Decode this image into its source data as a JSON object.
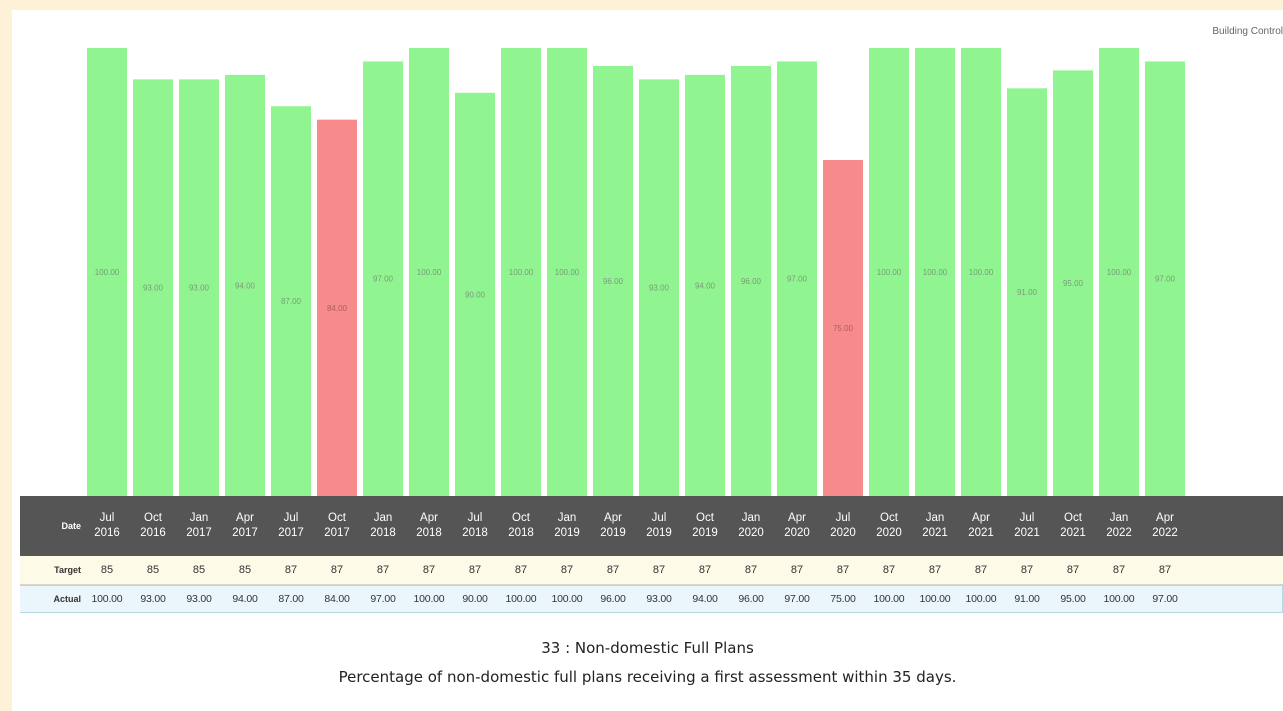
{
  "corner_label": "Building Control",
  "table": {
    "date_header": "Date",
    "target_header": "Target",
    "actual_header": "Actual"
  },
  "caption": {
    "title": "33 : Non-domestic Full Plans",
    "subtitle": "Percentage of non-domestic full plans receiving a first assessment within 35 days."
  },
  "colors": {
    "met_target": "#90f590",
    "below_target": "#f78a8a",
    "bar_label": "#7a9a7a"
  },
  "chart_data": {
    "type": "bar",
    "title": "33 : Non-domestic Full Plans",
    "subtitle": "Percentage of non-domestic full plans receiving a first assessment within 35 days.",
    "ylim": [
      0,
      100
    ],
    "categories": [
      [
        "Jul",
        "2016"
      ],
      [
        "Oct",
        "2016"
      ],
      [
        "Jan",
        "2017"
      ],
      [
        "Apr",
        "2017"
      ],
      [
        "Jul",
        "2017"
      ],
      [
        "Oct",
        "2017"
      ],
      [
        "Jan",
        "2018"
      ],
      [
        "Apr",
        "2018"
      ],
      [
        "Jul",
        "2018"
      ],
      [
        "Oct",
        "2018"
      ],
      [
        "Jan",
        "2019"
      ],
      [
        "Apr",
        "2019"
      ],
      [
        "Jul",
        "2019"
      ],
      [
        "Oct",
        "2019"
      ],
      [
        "Jan",
        "2020"
      ],
      [
        "Apr",
        "2020"
      ],
      [
        "Jul",
        "2020"
      ],
      [
        "Oct",
        "2020"
      ],
      [
        "Jan",
        "2021"
      ],
      [
        "Apr",
        "2021"
      ],
      [
        "Jul",
        "2021"
      ],
      [
        "Oct",
        "2021"
      ],
      [
        "Jan",
        "2022"
      ],
      [
        "Apr",
        "2022"
      ]
    ],
    "target": [
      "85",
      "85",
      "85",
      "85",
      "87",
      "87",
      "87",
      "87",
      "87",
      "87",
      "87",
      "87",
      "87",
      "87",
      "87",
      "87",
      "87",
      "87",
      "87",
      "87",
      "87",
      "87",
      "87",
      "87"
    ],
    "actual": [
      "100.00",
      "93.00",
      "93.00",
      "94.00",
      "87.00",
      "84.00",
      "97.00",
      "100.00",
      "90.00",
      "100.00",
      "100.00",
      "96.00",
      "93.00",
      "94.00",
      "96.00",
      "97.00",
      "75.00",
      "100.00",
      "100.00",
      "100.00",
      "91.00",
      "95.00",
      "100.00",
      "97.00"
    ]
  }
}
